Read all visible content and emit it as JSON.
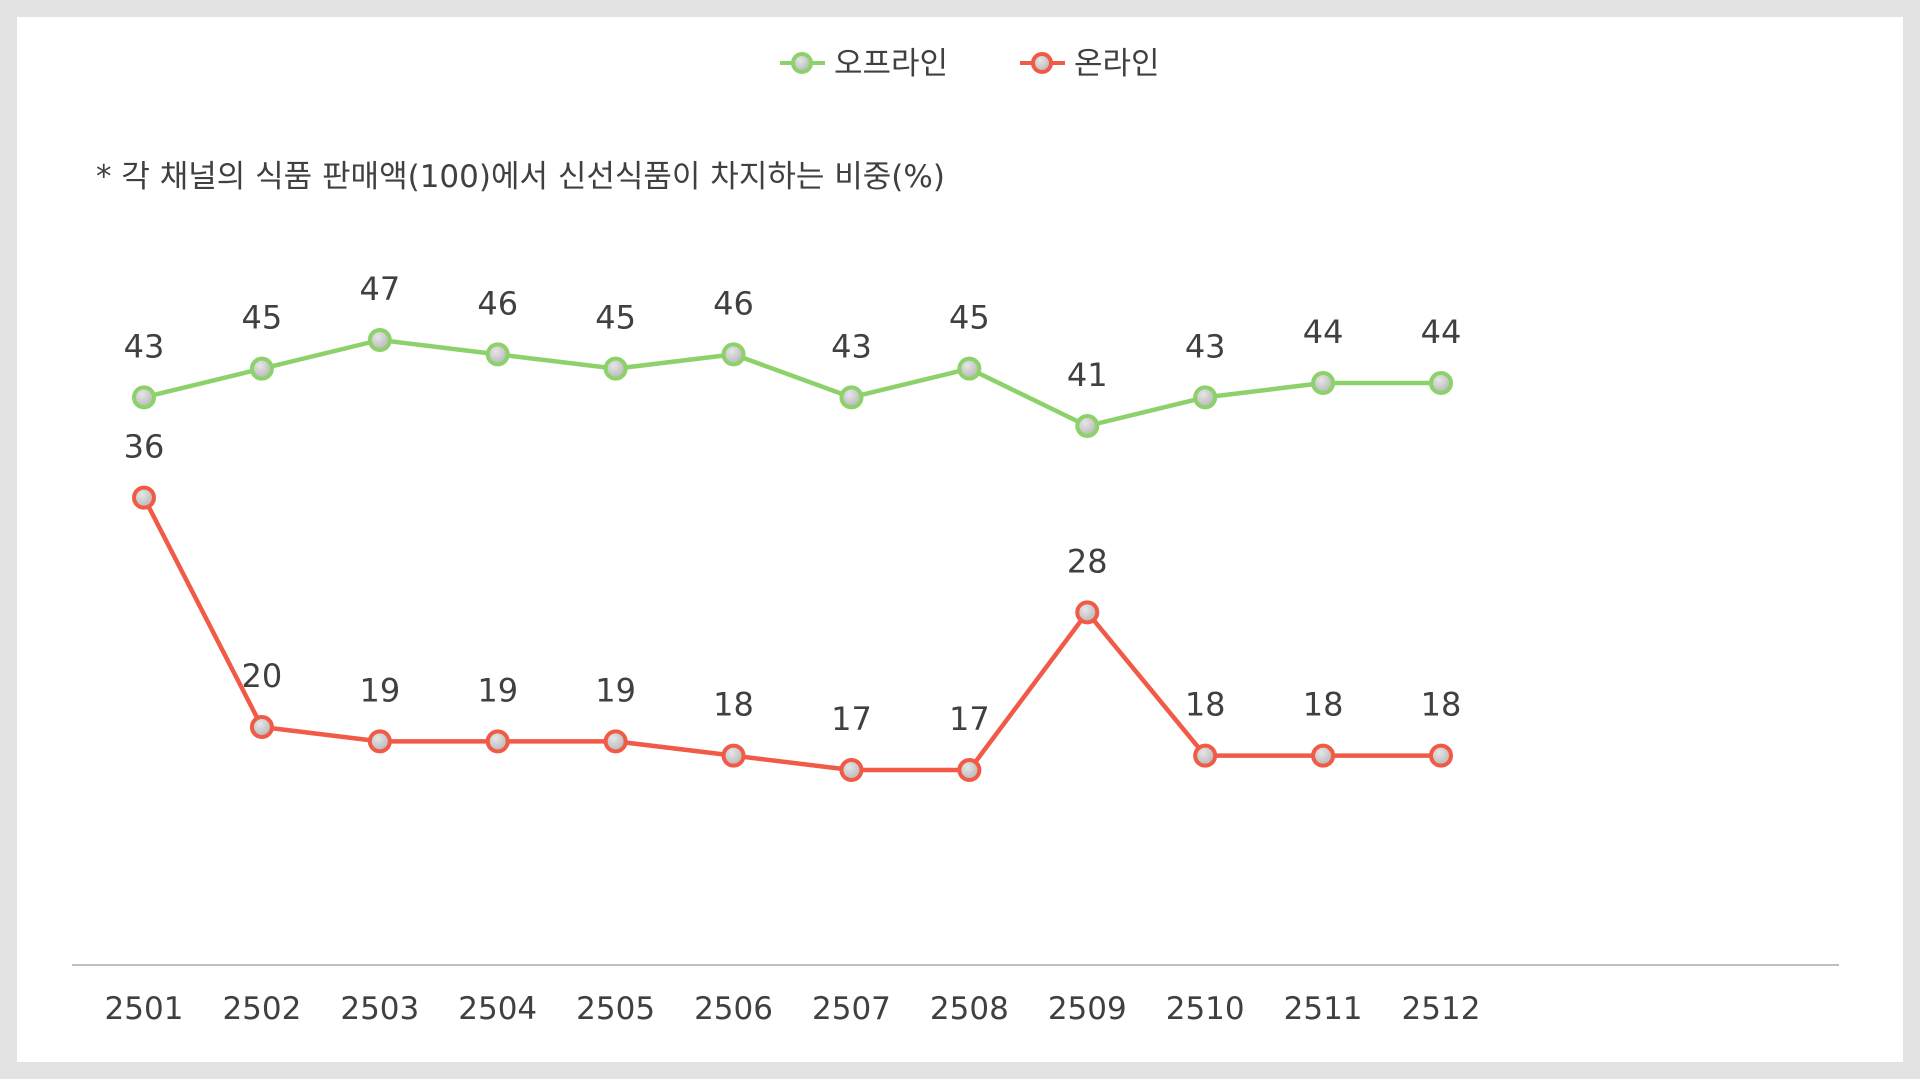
{
  "chart_data": {
    "type": "line",
    "title": "",
    "note": "* 각 채널의 식품 판매액(100)에서 신선식품이 차지하는 비중(%)",
    "categories": [
      "2501",
      "2502",
      "2503",
      "2504",
      "2505",
      "2506",
      "2507",
      "2508",
      "2509",
      "2510",
      "2511",
      "2512"
    ],
    "series": [
      {
        "name": "오프라인",
        "color": "#8dd16a",
        "values": [
          43,
          45,
          47,
          46,
          45,
          46,
          43,
          45,
          41,
          43,
          44,
          44
        ]
      },
      {
        "name": "온라인",
        "color": "#f05a46",
        "values": [
          36,
          20,
          19,
          19,
          19,
          18,
          17,
          17,
          28,
          18,
          18,
          18
        ]
      }
    ],
    "xlabel": "",
    "ylabel": "",
    "ylim": [
      8,
      51
    ],
    "grid": false,
    "legend_position": "top-center",
    "data_labels": true,
    "marker_fill": "#c8c8c8"
  }
}
